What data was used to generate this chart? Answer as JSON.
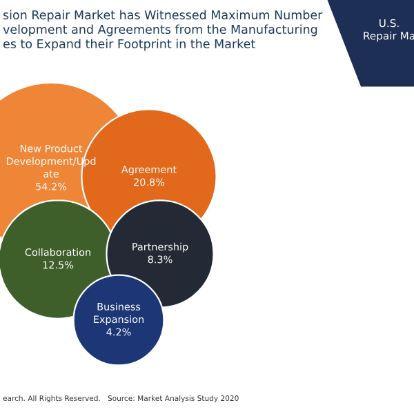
{
  "chart_data": {
    "type": "other",
    "title": "sion Repair Market has Witnessed Maximum Number\nvelopment and Agreements from the Manufacturing\nes to Expand their Footprint in the Market",
    "categories": [
      "New Product\nDevelopment/Upd\nate",
      "Agreement",
      "Collaboration",
      "Partnership",
      "Business\nExpansion"
    ],
    "values": [
      54.2,
      20.8,
      12.5,
      8.3,
      4.2
    ],
    "value_labels": [
      "54.2%",
      "20.8%",
      "12.5%",
      "8.3%",
      "4.2%"
    ],
    "colors": [
      "#ef8536",
      "#e2691b",
      "#3e5f2a",
      "#232a36",
      "#1d3676"
    ],
    "annotations": [
      "U.S.\nRepair Ma",
      "earch. All Rights Reserved.",
      "Source: Market Analysis Study 2020"
    ]
  }
}
